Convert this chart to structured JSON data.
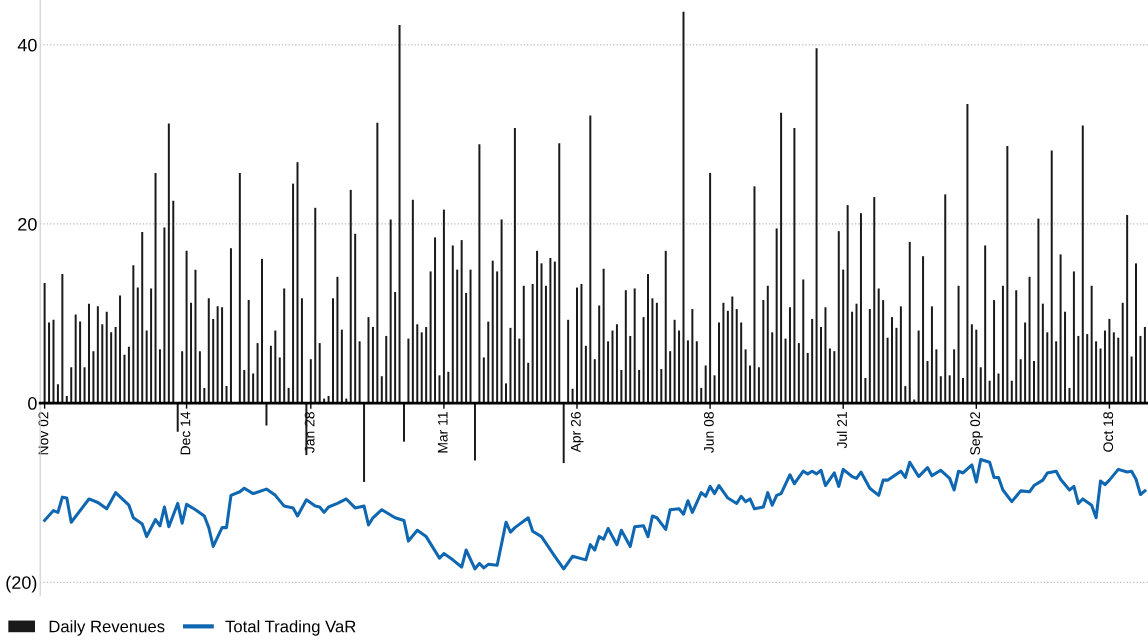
{
  "chart_data": {
    "type": "bar",
    "categories": [
      "Nov 02",
      null,
      null,
      null,
      null,
      null,
      null,
      null,
      null,
      null,
      null,
      null,
      null,
      null,
      null,
      null,
      null,
      null,
      null,
      null,
      null,
      null,
      null,
      null,
      null,
      null,
      null,
      null,
      null,
      null,
      null,
      null,
      "Dec 14",
      null,
      null,
      null,
      null,
      null,
      null,
      null,
      null,
      null,
      null,
      null,
      null,
      null,
      null,
      null,
      null,
      null,
      null,
      null,
      null,
      null,
      null,
      null,
      null,
      null,
      null,
      null,
      "Jan 28",
      null,
      null,
      null,
      null,
      null,
      null,
      null,
      null,
      null,
      null,
      null,
      null,
      null,
      null,
      null,
      null,
      null,
      null,
      null,
      null,
      null,
      null,
      null,
      null,
      null,
      null,
      null,
      null,
      null,
      "Mar 11",
      null,
      null,
      null,
      null,
      null,
      null,
      null,
      null,
      null,
      null,
      null,
      null,
      null,
      null,
      null,
      null,
      null,
      null,
      null,
      null,
      null,
      null,
      null,
      null,
      null,
      null,
      null,
      null,
      null,
      "Apr 26",
      null,
      null,
      null,
      null,
      null,
      null,
      null,
      null,
      null,
      null,
      null,
      null,
      null,
      null,
      null,
      null,
      null,
      null,
      null,
      null,
      null,
      null,
      null,
      null,
      null,
      null,
      null,
      null,
      null,
      "Jun 08",
      null,
      null,
      null,
      null,
      null,
      null,
      null,
      null,
      null,
      null,
      null,
      null,
      null,
      null,
      null,
      null,
      null,
      null,
      null,
      null,
      null,
      null,
      null,
      null,
      null,
      null,
      null,
      null,
      null,
      "Jul 21",
      null,
      null,
      null,
      null,
      null,
      null,
      null,
      null,
      null,
      null,
      null,
      null,
      null,
      null,
      null,
      null,
      null,
      null,
      null,
      null,
      null,
      null,
      null,
      null,
      null,
      null,
      null,
      null,
      null,
      "Sep 02",
      null,
      null,
      null,
      null,
      null,
      null,
      null,
      null,
      null,
      null,
      null,
      null,
      null,
      null,
      null,
      null,
      null,
      null,
      null,
      null,
      null,
      null,
      null,
      null,
      null,
      null,
      null,
      null,
      null,
      "Oct 18",
      null,
      null,
      null,
      null,
      null,
      null,
      null,
      null
    ],
    "series": [
      {
        "name": "Daily Revenues",
        "color": "#1a1a1a",
        "values": [
          13.4,
          9.0,
          9.3,
          2.1,
          14.4,
          0.8,
          4.0,
          9.9,
          9.1,
          4.0,
          11.1,
          5.8,
          10.8,
          8.8,
          10.2,
          7.9,
          8.5,
          12.0,
          5.4,
          6.3,
          15.4,
          12.9,
          19.1,
          8.1,
          12.8,
          25.7,
          6.0,
          19.6,
          31.2,
          22.6,
          -3.2,
          5.8,
          17.0,
          11.2,
          14.9,
          5.8,
          1.7,
          11.7,
          9.4,
          10.8,
          10.7,
          1.9,
          17.3,
          0,
          25.7,
          3.7,
          11.5,
          3.3,
          6.7,
          16.1,
          -2.5,
          6.4,
          8.1,
          5.1,
          12.8,
          1.7,
          24.5,
          26.9,
          11.7,
          -5.8,
          4.9,
          21.8,
          6.7,
          0.5,
          0.8,
          11.7,
          14.1,
          8.2,
          0.5,
          23.8,
          18.9,
          6.9,
          -8.8,
          9.6,
          8.5,
          31.3,
          3.0,
          7.5,
          20.5,
          12.4,
          42.2,
          -4.3,
          7.2,
          22.7,
          8.8,
          7.9,
          8.5,
          14.7,
          18.5,
          3.1,
          21.6,
          3.5,
          17.6,
          14.9,
          18.2,
          12.3,
          14.9,
          -6.4,
          28.9,
          5.1,
          9.1,
          15.9,
          14.7,
          20.5,
          2.2,
          8.4,
          30.7,
          7.2,
          13.1,
          4.5,
          13.3,
          17.0,
          15.6,
          13.1,
          16.2,
          15.8,
          29.0,
          -6.7,
          9.3,
          1.6,
          12.9,
          13.3,
          6.4,
          32.1,
          4.9,
          10.9,
          15.0,
          6.9,
          8.1,
          8.8,
          3.7,
          12.6,
          7.5,
          12.8,
          3.7,
          9.6,
          14.4,
          11.7,
          11.2,
          3.8,
          17.0,
          5.8,
          9.3,
          8.1,
          43.7,
          7.0,
          10.5,
          6.9,
          1.7,
          4.2,
          25.7,
          3.1,
          9.0,
          11.2,
          10.3,
          11.9,
          10.5,
          9.0,
          6.0,
          4.2,
          24.2,
          4.0,
          11.5,
          13.1,
          7.9,
          19.5,
          32.4,
          7.2,
          10.7,
          30.7,
          6.7,
          13.8,
          5.6,
          9.4,
          39.6,
          8.5,
          10.7,
          6.1,
          5.8,
          19.2,
          14.9,
          22.1,
          10.2,
          11.1,
          21.2,
          2.8,
          10.5,
          23.0,
          12.8,
          11.5,
          7.3,
          9.6,
          8.4,
          10.8,
          1.9,
          18.0,
          0.4,
          8.1,
          16.4,
          4.7,
          10.8,
          6.0,
          3.0,
          23.3,
          3.1,
          6.0,
          13.1,
          2.8,
          33.4,
          8.8,
          8.2,
          4.0,
          17.6,
          2.5,
          11.5,
          3.3,
          13.1,
          28.7,
          2.5,
          12.6,
          4.9,
          9.0,
          14.1,
          4.7,
          20.6,
          11.1,
          7.9,
          28.2,
          6.9,
          16.6,
          10.2,
          1.7,
          14.7,
          7.5,
          31.0,
          7.7,
          13.1,
          6.9,
          6.1,
          8.1,
          9.4,
          7.9,
          7.3,
          11.2,
          21.0,
          5.2,
          15.6,
          7.5,
          8.5
        ]
      },
      {
        "name": "Total Trading VaR",
        "type": "line",
        "color": "#0f67b1",
        "values": [
          -13.1,
          null,
          -12.0,
          -12.2,
          -10.5,
          -10.6,
          -13.3,
          null,
          null,
          null,
          -10.7,
          null,
          -11.1,
          null,
          -11.8,
          null,
          -10.0,
          null,
          null,
          -11.4,
          -12.8,
          null,
          -13.5,
          -14.9,
          null,
          -13.0,
          -13.7,
          -11.6,
          -13.8,
          null,
          -11.2,
          -13.4,
          -11.3,
          null,
          -11.9,
          null,
          -12.6,
          -13.9,
          -16.0,
          null,
          -13.9,
          -13.9,
          -10.3,
          null,
          -9.9,
          -9.5,
          null,
          -10.1,
          null,
          null,
          -9.6,
          null,
          -10.3,
          null,
          -11.5,
          null,
          -11.7,
          -12.6,
          null,
          -10.8,
          null,
          -11.5,
          -11.6,
          -12.2,
          -11.6,
          null,
          -11.2,
          null,
          -10.7,
          null,
          -11.7,
          null,
          -11.5,
          -13.6,
          -12.8,
          null,
          -11.9,
          null,
          null,
          -12.8,
          null,
          -13.1,
          -15.4,
          null,
          -14.2,
          null,
          -14.9,
          null,
          null,
          -17.3,
          -16.8,
          null,
          -17.5,
          null,
          -18.3,
          -16.4,
          null,
          -18.5,
          -17.9,
          -18.4,
          -18.0,
          null,
          -18.1,
          null,
          -13.3,
          -14.4,
          -13.9,
          null,
          null,
          -12.8,
          -14.3,
          null,
          -14.9,
          null,
          null,
          -17.1,
          null,
          -18.5,
          null,
          -17.1,
          null,
          null,
          -17.5,
          -15.8,
          -16.4,
          -14.9,
          -15.2,
          -14.0,
          null,
          -15.8,
          -14.2,
          null,
          -16.0,
          -13.8,
          null,
          -13.7,
          -14.9,
          -12.6,
          -12.8,
          null,
          -14.1,
          -11.9,
          null,
          -11.8,
          -12.4,
          -10.9,
          -12.2,
          null,
          -10.0,
          -10.4,
          -9.3,
          -10.1,
          -9.2,
          null,
          -10.6,
          null,
          -11.2,
          -10.4,
          -11.0,
          -10.7,
          -11.8,
          null,
          -11.6,
          -10.0,
          -11.4,
          -10.3,
          -10.1,
          null,
          -8.0,
          -9.0,
          null,
          -7.6,
          -7.9,
          -7.6,
          -7.9,
          -7.5,
          -9.2,
          null,
          -7.8,
          -9.3,
          -7.4,
          null,
          -8.2,
          -8.4,
          -7.7,
          null,
          -9.5,
          null,
          -10.3,
          -8.6,
          -8.6,
          null,
          null,
          -7.6,
          -8.3,
          -6.6,
          null,
          -8.2,
          null,
          -7.2,
          -8.1,
          null,
          -7.5,
          null,
          -8.4,
          -9.7,
          -7.6,
          -7.8,
          null,
          -6.9,
          -8.8,
          -6.3,
          null,
          -6.6,
          -8.3,
          -8.3,
          -9.7,
          null,
          -11.0,
          null,
          -9.8,
          null,
          -9.9,
          -9.2,
          null,
          -8.6,
          -7.8,
          null,
          -7.6,
          -8.5,
          null,
          -9.7,
          -9.3,
          -11.2,
          -10.7,
          null,
          -11.4,
          -12.8,
          -8.7,
          -9.1,
          -8.6,
          null,
          -7.4,
          null,
          -7.7,
          -7.6,
          -8.5,
          -10.2,
          -9.8
        ]
      }
    ],
    "ylim": [
      -21.5,
      45
    ],
    "yticks": [
      40,
      20,
      0,
      {
        "value": -20,
        "label": "(20)"
      }
    ],
    "grid": "y",
    "legend": "bottom left",
    "marker": "none",
    "line_style": "solid"
  }
}
